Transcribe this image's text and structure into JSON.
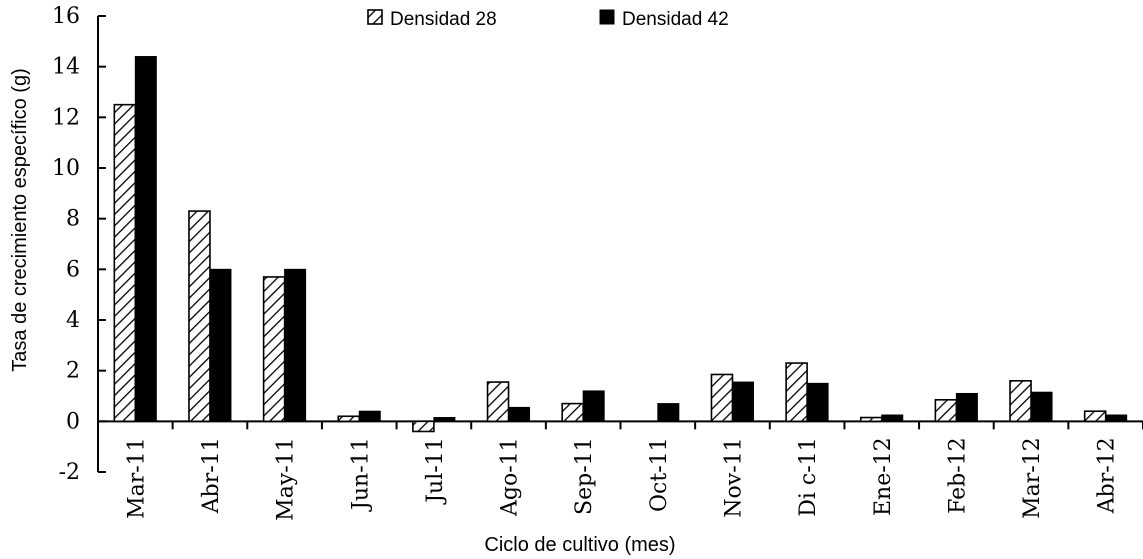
{
  "chart_data": {
    "type": "bar",
    "title": "",
    "xlabel": "Ciclo de cultivo (mes)",
    "ylabel": "Tasa de crecimiento específico (g)",
    "ylim": [
      -2,
      16
    ],
    "yticks": [
      -2,
      0,
      2,
      4,
      6,
      8,
      10,
      12,
      14,
      16
    ],
    "categories": [
      "Mar-11",
      "Abr-11",
      "May-11",
      "Jun-11",
      "Jul-11",
      "Ago-11",
      "Sep-11",
      "Oct-11",
      "Nov-11",
      "Di c-11",
      "Ene-12",
      "Feb-12",
      "Mar-12",
      "Abr-12"
    ],
    "legend_position": "top",
    "grid": false,
    "series": [
      {
        "name": "Densidad 28",
        "pattern": "diagonal-hatch",
        "color": "#000000",
        "values": [
          12.5,
          8.3,
          5.7,
          0.2,
          -0.4,
          1.55,
          0.7,
          0,
          1.85,
          2.3,
          0.15,
          0.85,
          1.6,
          0.4
        ]
      },
      {
        "name": "Densidad 42",
        "pattern": "solid",
        "color": "#000000",
        "values": [
          14.4,
          6.0,
          6.0,
          0.4,
          0.15,
          0.55,
          1.2,
          0.7,
          1.55,
          1.5,
          0.25,
          1.1,
          1.15,
          0.25
        ]
      }
    ]
  }
}
